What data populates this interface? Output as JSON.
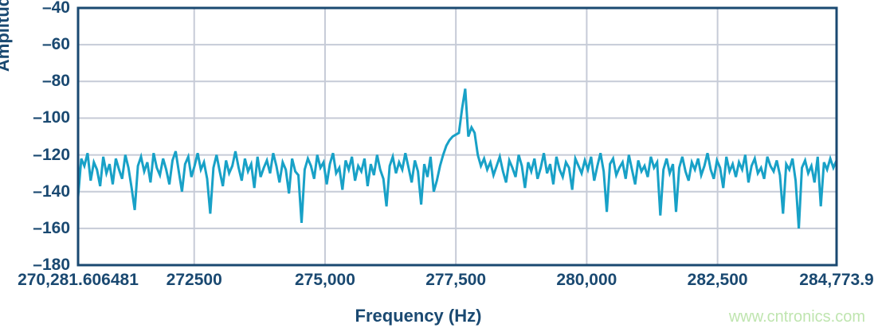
{
  "watermark": {
    "text": "www.cntronics.com",
    "color": "#BFE5AF"
  },
  "colors": {
    "axis_text": "#1A4971",
    "plot_border": "#1A4971",
    "gridline": "#C6CBD7",
    "trace": "#18A1C7",
    "background": "#FFFFFF"
  },
  "chart_data": {
    "type": "line",
    "title": "",
    "xlabel": "Frequency (Hz)",
    "ylabel": "Amplitude (dBFS)",
    "xlim": [
      270281.606481,
      284773.9
    ],
    "ylim": [
      -180,
      -40
    ],
    "grid": true,
    "legend": "none",
    "x_ticks": [
      {
        "value": 270281.606481,
        "label": "270,281.606481"
      },
      {
        "value": 272500,
        "label": "272500"
      },
      {
        "value": 275000,
        "label": "275,000"
      },
      {
        "value": 277500,
        "label": "277,500"
      },
      {
        "value": 280000,
        "label": "280,000"
      },
      {
        "value": 282500,
        "label": "282,500"
      },
      {
        "value": 284773.9,
        "label": "284,773.9"
      }
    ],
    "y_ticks": [
      {
        "value": -40,
        "label": "–40"
      },
      {
        "value": -60,
        "label": "–60"
      },
      {
        "value": -80,
        "label": "–80"
      },
      {
        "value": -100,
        "label": "–100"
      },
      {
        "value": -120,
        "label": "–120"
      },
      {
        "value": -140,
        "label": "–140"
      },
      {
        "value": -160,
        "label": "–160"
      },
      {
        "value": -180,
        "label": "–180"
      }
    ],
    "peak": {
      "frequency_hz": 277700,
      "amplitude_dbfs": -84
    },
    "noise_floor_dbfs": -128,
    "series": [
      {
        "name": "spectrum",
        "color": "#18A1C7",
        "x_start": 270281.606481,
        "x_end": 284773.9,
        "amplitudes_dbfs": [
          -143,
          -122,
          -126,
          -119,
          -134,
          -124,
          -128,
          -137,
          -121,
          -130,
          -125,
          -136,
          -122,
          -128,
          -133,
          -120,
          -127,
          -138,
          -150,
          -126,
          -121,
          -129,
          -124,
          -135,
          -119,
          -127,
          -131,
          -122,
          -128,
          -136,
          -123,
          -118,
          -129,
          -140,
          -125,
          -121,
          -132,
          -126,
          -119,
          -128,
          -124,
          -133,
          -152,
          -127,
          -120,
          -129,
          -137,
          -123,
          -130,
          -126,
          -118,
          -127,
          -134,
          -122,
          -129,
          -125,
          -138,
          -121,
          -132,
          -127,
          -123,
          -130,
          -119,
          -126,
          -135,
          -124,
          -128,
          -141,
          -122,
          -129,
          -131,
          -157,
          -128,
          -122,
          -126,
          -133,
          -120,
          -127,
          -124,
          -136,
          -125,
          -119,
          -130,
          -127,
          -139,
          -123,
          -128,
          -121,
          -134,
          -126,
          -129,
          -122,
          -137,
          -125,
          -131,
          -120,
          -128,
          -133,
          -148,
          -126,
          -121,
          -130,
          -124,
          -128,
          -119,
          -127,
          -135,
          -123,
          -129,
          -147,
          -125,
          -132,
          -121,
          -140,
          -134,
          -126,
          -120,
          -115,
          -112,
          -110,
          -109,
          -108,
          -95,
          -84,
          -110,
          -105,
          -108,
          -120,
          -126,
          -122,
          -128,
          -124,
          -131,
          -126,
          -121,
          -129,
          -135,
          -123,
          -127,
          -132,
          -120,
          -126,
          -138,
          -124,
          -129,
          -122,
          -133,
          -127,
          -119,
          -130,
          -125,
          -136,
          -121,
          -128,
          -132,
          -124,
          -127,
          -139,
          -122,
          -126,
          -130,
          -123,
          -128,
          -121,
          -134,
          -126,
          -119,
          -129,
          -151,
          -125,
          -122,
          -131,
          -127,
          -124,
          -133,
          -120,
          -128,
          -136,
          -123,
          -129,
          -126,
          -132,
          -121,
          -127,
          -124,
          -153,
          -128,
          -122,
          -130,
          -125,
          -151,
          -127,
          -121,
          -129,
          -134,
          -124,
          -128,
          -122,
          -131,
          -126,
          -119,
          -128,
          -133,
          -123,
          -127,
          -138,
          -121,
          -129,
          -125,
          -132,
          -124,
          -128,
          -120,
          -135,
          -126,
          -122,
          -130,
          -127,
          -133,
          -121,
          -126,
          -129,
          -123,
          -131,
          -152,
          -125,
          -128,
          -122,
          -134,
          -160,
          -127,
          -123,
          -130,
          -126,
          -135,
          -121,
          -148,
          -124,
          -128,
          -122,
          -127,
          -123
        ]
      }
    ]
  }
}
